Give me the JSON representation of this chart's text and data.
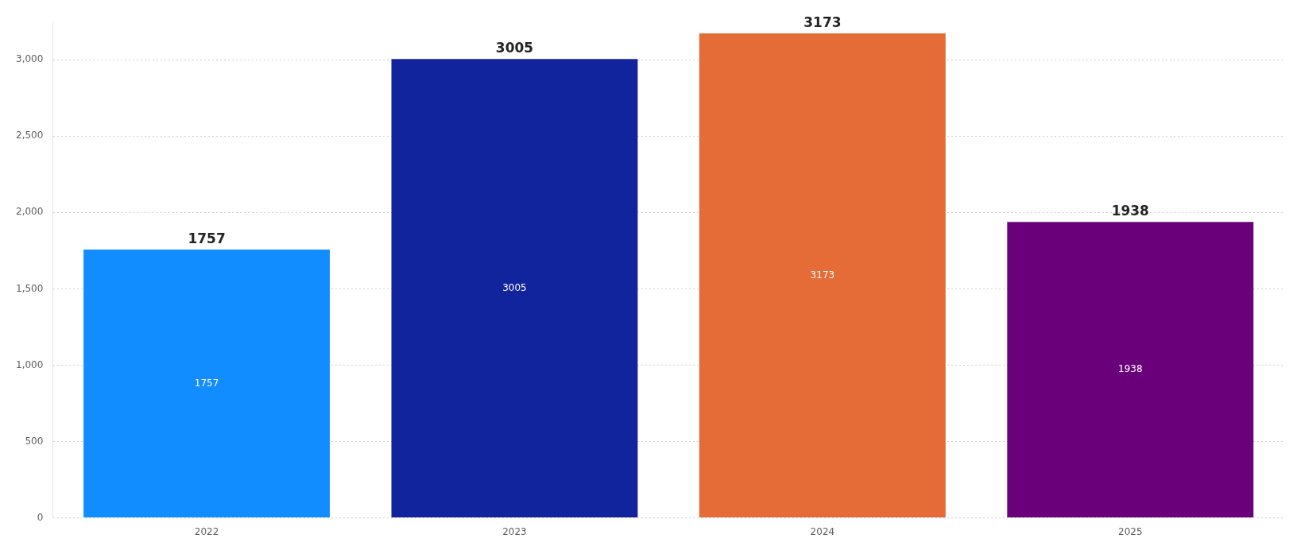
{
  "chart_data": {
    "type": "bar",
    "categories": [
      "2022",
      "2023",
      "2024",
      "2025"
    ],
    "values": [
      1757,
      3005,
      3173,
      1938
    ],
    "colors": [
      "#118dff",
      "#12239e",
      "#e66c37",
      "#6b007b"
    ],
    "ylim": [
      0,
      3250
    ],
    "yticks": [
      0,
      {
        "value": 500,
        "label": "500"
      },
      {
        "value": 1000,
        "label": "1,000"
      },
      {
        "value": 1500,
        "label": "1,500"
      },
      {
        "value": 2000,
        "label": "2,000"
      },
      {
        "value": 2500,
        "label": "2,500"
      },
      {
        "value": 3000,
        "label": "3,000"
      }
    ],
    "grid": "y",
    "value_labels": [
      "1757",
      "3005",
      "3173",
      "1938"
    ],
    "legend": false,
    "annotations": [
      {
        "text": "1757",
        "x": "2022",
        "y": 1757
      },
      {
        "text": "3005",
        "x": "2023",
        "y": 3005
      },
      {
        "text": "3173",
        "x": "2024",
        "y": 3173
      },
      {
        "text": "1938",
        "x": "2025",
        "y": 1938
      }
    ]
  }
}
